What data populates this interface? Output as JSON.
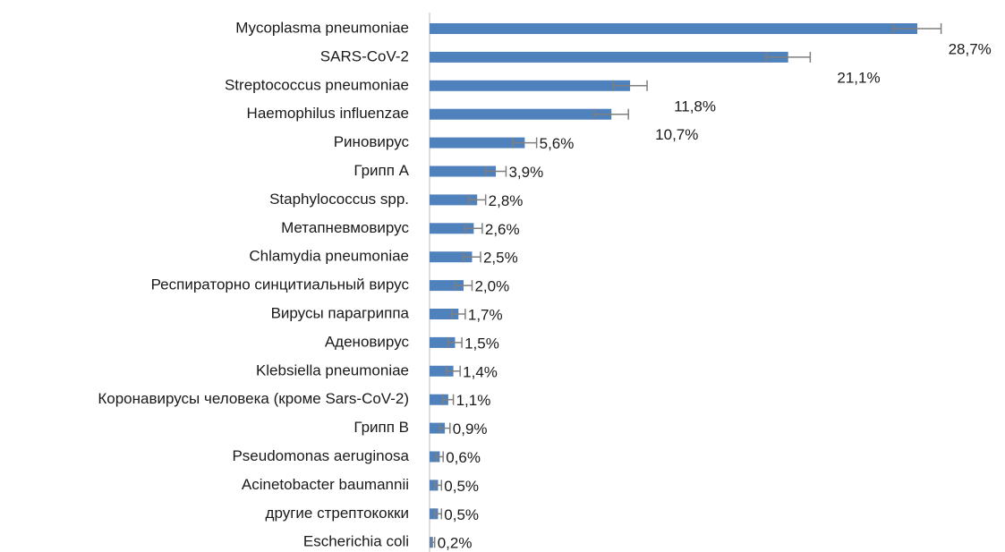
{
  "chart_data": {
    "type": "barh",
    "categories": [
      "Mycoplasma pneumoniae",
      "SARS-CoV-2",
      "Streptococcus pneumoniae",
      "Haemophilus influenzae",
      "Риновирус",
      "Грипп А",
      "Staphylococcus spp.",
      "Метапневмовирус",
      "Chlamydia pneumoniae",
      "Респираторно синцитиальный вирус",
      "Вирусы парагриппа",
      "Аденовирус",
      "Klebsiella pneumoniae",
      "Коронавирусы человека (кроме Sars-CoV-2)",
      "Грипп В",
      "Pseudomonas aeruginosa",
      "Acinetobacter baumannii",
      "другие стрептококки",
      "Escherichia coli"
    ],
    "values": [
      28.7,
      21.1,
      11.8,
      10.7,
      5.6,
      3.9,
      2.8,
      2.6,
      2.5,
      2.0,
      1.7,
      1.5,
      1.4,
      1.1,
      0.9,
      0.6,
      0.5,
      0.5,
      0.2
    ],
    "value_labels": [
      "28,7%",
      "21,1%",
      "11,8%",
      "10,7%",
      "5,6%",
      "3,9%",
      "2,8%",
      "2,6%",
      "2,5%",
      "2,0%",
      "1,7%",
      "1,5%",
      "1,4%",
      "1,1%",
      "0,9%",
      "0,6%",
      "0,5%",
      "0,5%",
      "0,2%"
    ],
    "errors": [
      1.4,
      1.3,
      1.0,
      1.0,
      0.7,
      0.6,
      0.5,
      0.5,
      0.5,
      0.5,
      0.4,
      0.4,
      0.4,
      0.3,
      0.3,
      0.2,
      0.2,
      0.2,
      0.1
    ],
    "color": "#4f81bd",
    "error_color": "#7f7f7f"
  }
}
